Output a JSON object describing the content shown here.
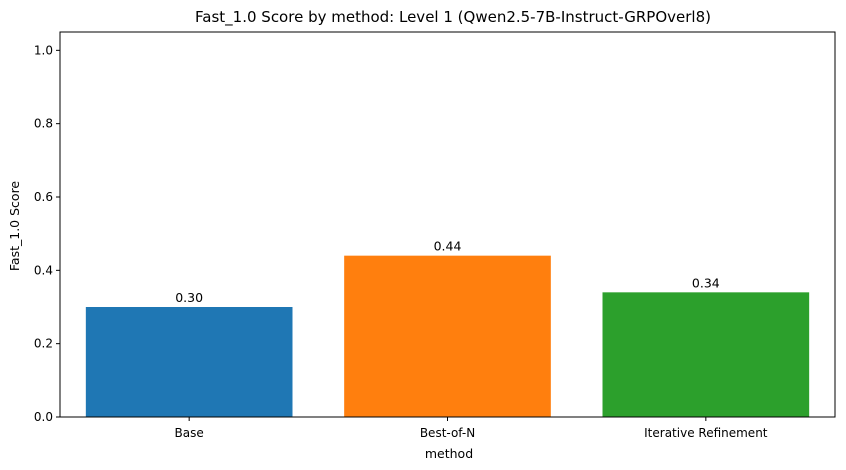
{
  "chart_data": {
    "type": "bar",
    "title": "Fast_1.0 Score by method: Level 1 (Qwen2.5-7B-Instruct-GRPOverl8)",
    "xlabel": "method",
    "ylabel": "Fast_1.0 Score",
    "categories": [
      "Base",
      "Best-of-N",
      "Iterative Refinement"
    ],
    "values": [
      0.3,
      0.44,
      0.34
    ],
    "data_labels": [
      "0.30",
      "0.44",
      "0.34"
    ],
    "colors": [
      "#1f77b4",
      "#ff7f0e",
      "#2ca02c"
    ],
    "ylim": [
      0,
      1.05
    ],
    "yticks": [
      0.0,
      0.2,
      0.4,
      0.6,
      0.8,
      1.0
    ],
    "ytick_labels": [
      "0.0",
      "0.2",
      "0.4",
      "0.6",
      "0.8",
      "1.0"
    ],
    "grid": false,
    "legend": "none"
  }
}
